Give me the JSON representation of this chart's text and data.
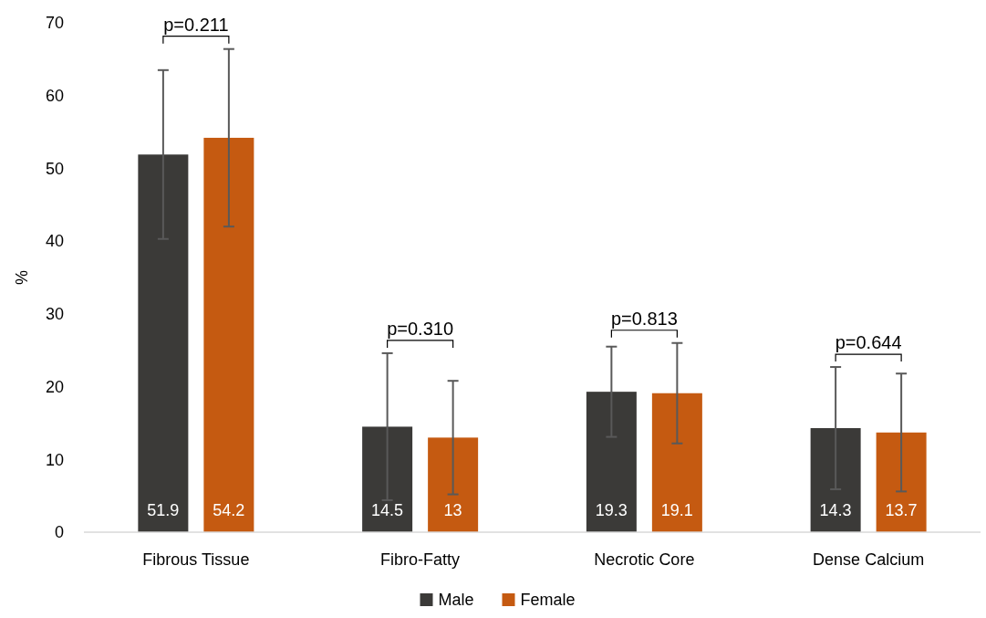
{
  "chart_data": {
    "type": "bar",
    "ylabel": "%",
    "categories": [
      "Fibrous Tissue",
      "Fibro-Fatty",
      "Necrotic Core",
      "Dense Calcium"
    ],
    "series": [
      {
        "name": "Male",
        "color": "#3b3a38",
        "values": [
          51.9,
          14.5,
          19.3,
          14.3
        ],
        "errors": [
          11.6,
          10.1,
          6.2,
          8.4
        ]
      },
      {
        "name": "Female",
        "color": "#c55a11",
        "values": [
          54.2,
          13,
          19.1,
          13.7
        ],
        "errors": [
          12.2,
          7.8,
          6.9,
          8.1
        ]
      }
    ],
    "ylim": [
      0,
      70
    ],
    "yticks": [
      0,
      10,
      20,
      30,
      40,
      50,
      60,
      70
    ],
    "grid": false,
    "legend": "bottom",
    "data_labels": true,
    "annotations": [
      "p=0.211",
      "p=0.310",
      "p=0.813",
      "p=0.644"
    ]
  }
}
